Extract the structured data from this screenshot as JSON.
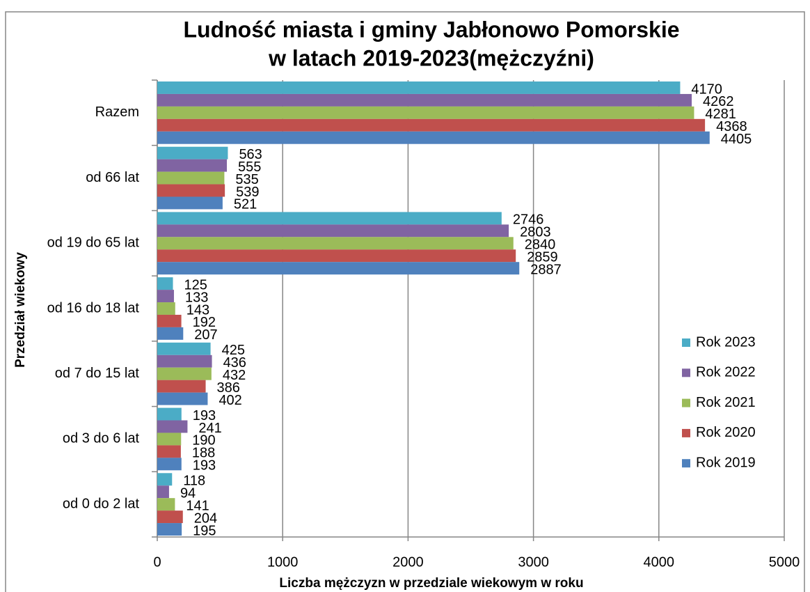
{
  "chart_data": {
    "type": "bar",
    "orientation": "horizontal",
    "title": [
      "Ludność miasta i gminy Jabłonowo Pomorskie",
      "w latach 2019-2023(mężczyźni)"
    ],
    "x_label": "Liczba mężczyzn w przedziale wiekowym w roku",
    "y_label": "Przedział wiekowy",
    "categories": [
      "Razem",
      "od 66 lat",
      "od 19 do 65 lat",
      "od 16 do 18 lat",
      "od 7 do 15 lat",
      "od 3 do 6 lat",
      "od 0 do 2 lat"
    ],
    "series": [
      {
        "name": "Rok 2023",
        "color": "#4bacc6",
        "values": [
          4170,
          563,
          2746,
          125,
          425,
          193,
          118
        ]
      },
      {
        "name": "Rok 2022",
        "color": "#8064a2",
        "values": [
          4262,
          555,
          2803,
          133,
          436,
          241,
          94
        ]
      },
      {
        "name": "Rok 2021",
        "color": "#9bbb59",
        "values": [
          4281,
          535,
          2840,
          143,
          432,
          190,
          141
        ]
      },
      {
        "name": "Rok 2020",
        "color": "#c0504d",
        "values": [
          4368,
          539,
          2859,
          192,
          386,
          188,
          204
        ]
      },
      {
        "name": "Rok 2019",
        "color": "#4f81bd",
        "values": [
          4405,
          521,
          2887,
          207,
          402,
          193,
          195
        ]
      }
    ],
    "xlim": [
      0,
      5000
    ],
    "xticks": [
      0,
      1000,
      2000,
      3000,
      4000,
      5000
    ],
    "grid": true,
    "legend": "right"
  }
}
